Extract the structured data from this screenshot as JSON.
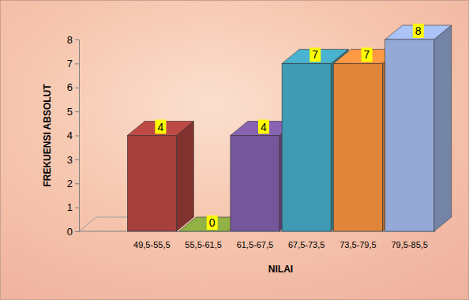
{
  "chart_data": {
    "type": "bar",
    "categories": [
      "49,5-55,5",
      "55,5-61,5",
      "61,5-67,5",
      "67,5-73,5",
      "73,5-79,5",
      "79,5-85,5"
    ],
    "values": [
      4,
      0,
      4,
      7,
      7,
      8
    ],
    "colors": [
      "#a6403c",
      "#7f9a3c",
      "#76569a",
      "#3f9bb4",
      "#e0853a",
      "#94a9d6"
    ],
    "x_label": "NILAI",
    "y_label": "FREKUENSI ABSOLUT",
    "ylim": [
      0,
      8
    ],
    "yticks": [
      0,
      1,
      2,
      3,
      4,
      5,
      6,
      7,
      8
    ],
    "grid": false,
    "data_labels": true
  }
}
